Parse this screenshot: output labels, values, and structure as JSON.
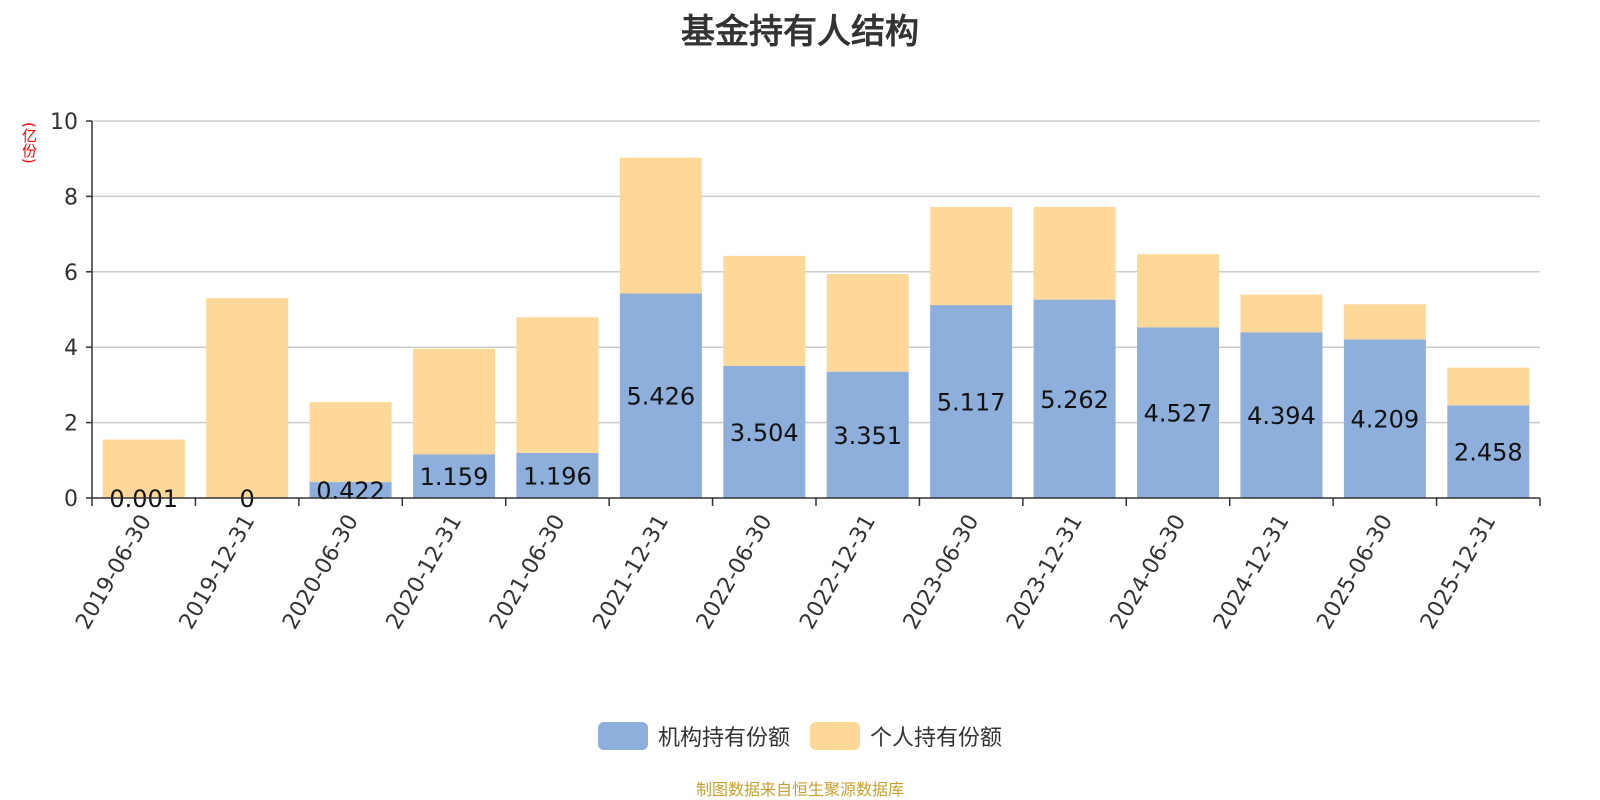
{
  "chart_data": {
    "type": "bar",
    "stacked": true,
    "title": "基金持有人结构",
    "ylabel": "(亿份)",
    "ylim": [
      0,
      10
    ],
    "yticks": [
      0,
      2,
      4,
      6,
      8,
      10
    ],
    "grid": true,
    "legend_position": "bottom",
    "categories": [
      "2019-06-30",
      "2019-12-31",
      "2020-06-30",
      "2020-12-31",
      "2021-06-30",
      "2021-12-31",
      "2022-06-30",
      "2022-12-31",
      "2023-06-30",
      "2023-12-31",
      "2024-06-30",
      "2024-12-31",
      "2025-06-30",
      "2025-12-31"
    ],
    "series": [
      {
        "name": "机构持有份额",
        "color": "#8eaedb",
        "values": [
          0.001,
          0,
          0.422,
          1.159,
          1.196,
          5.426,
          3.504,
          3.351,
          5.117,
          5.262,
          4.527,
          4.394,
          4.209,
          2.458
        ],
        "labels": [
          "0.001",
          "0",
          "0.422",
          "1.159",
          "1.196",
          "5.426",
          "3.504",
          "3.351",
          "5.117",
          "5.262",
          "4.527",
          "4.394",
          "4.209",
          "2.458"
        ]
      },
      {
        "name": "个人持有份额",
        "color": "#fed898",
        "values": [
          1.55,
          5.3,
          2.12,
          2.8,
          3.6,
          3.6,
          2.92,
          2.59,
          2.6,
          2.46,
          1.94,
          1.0,
          0.93,
          1.0
        ]
      }
    ]
  },
  "source_note": "制图数据来自恒生聚源数据库"
}
